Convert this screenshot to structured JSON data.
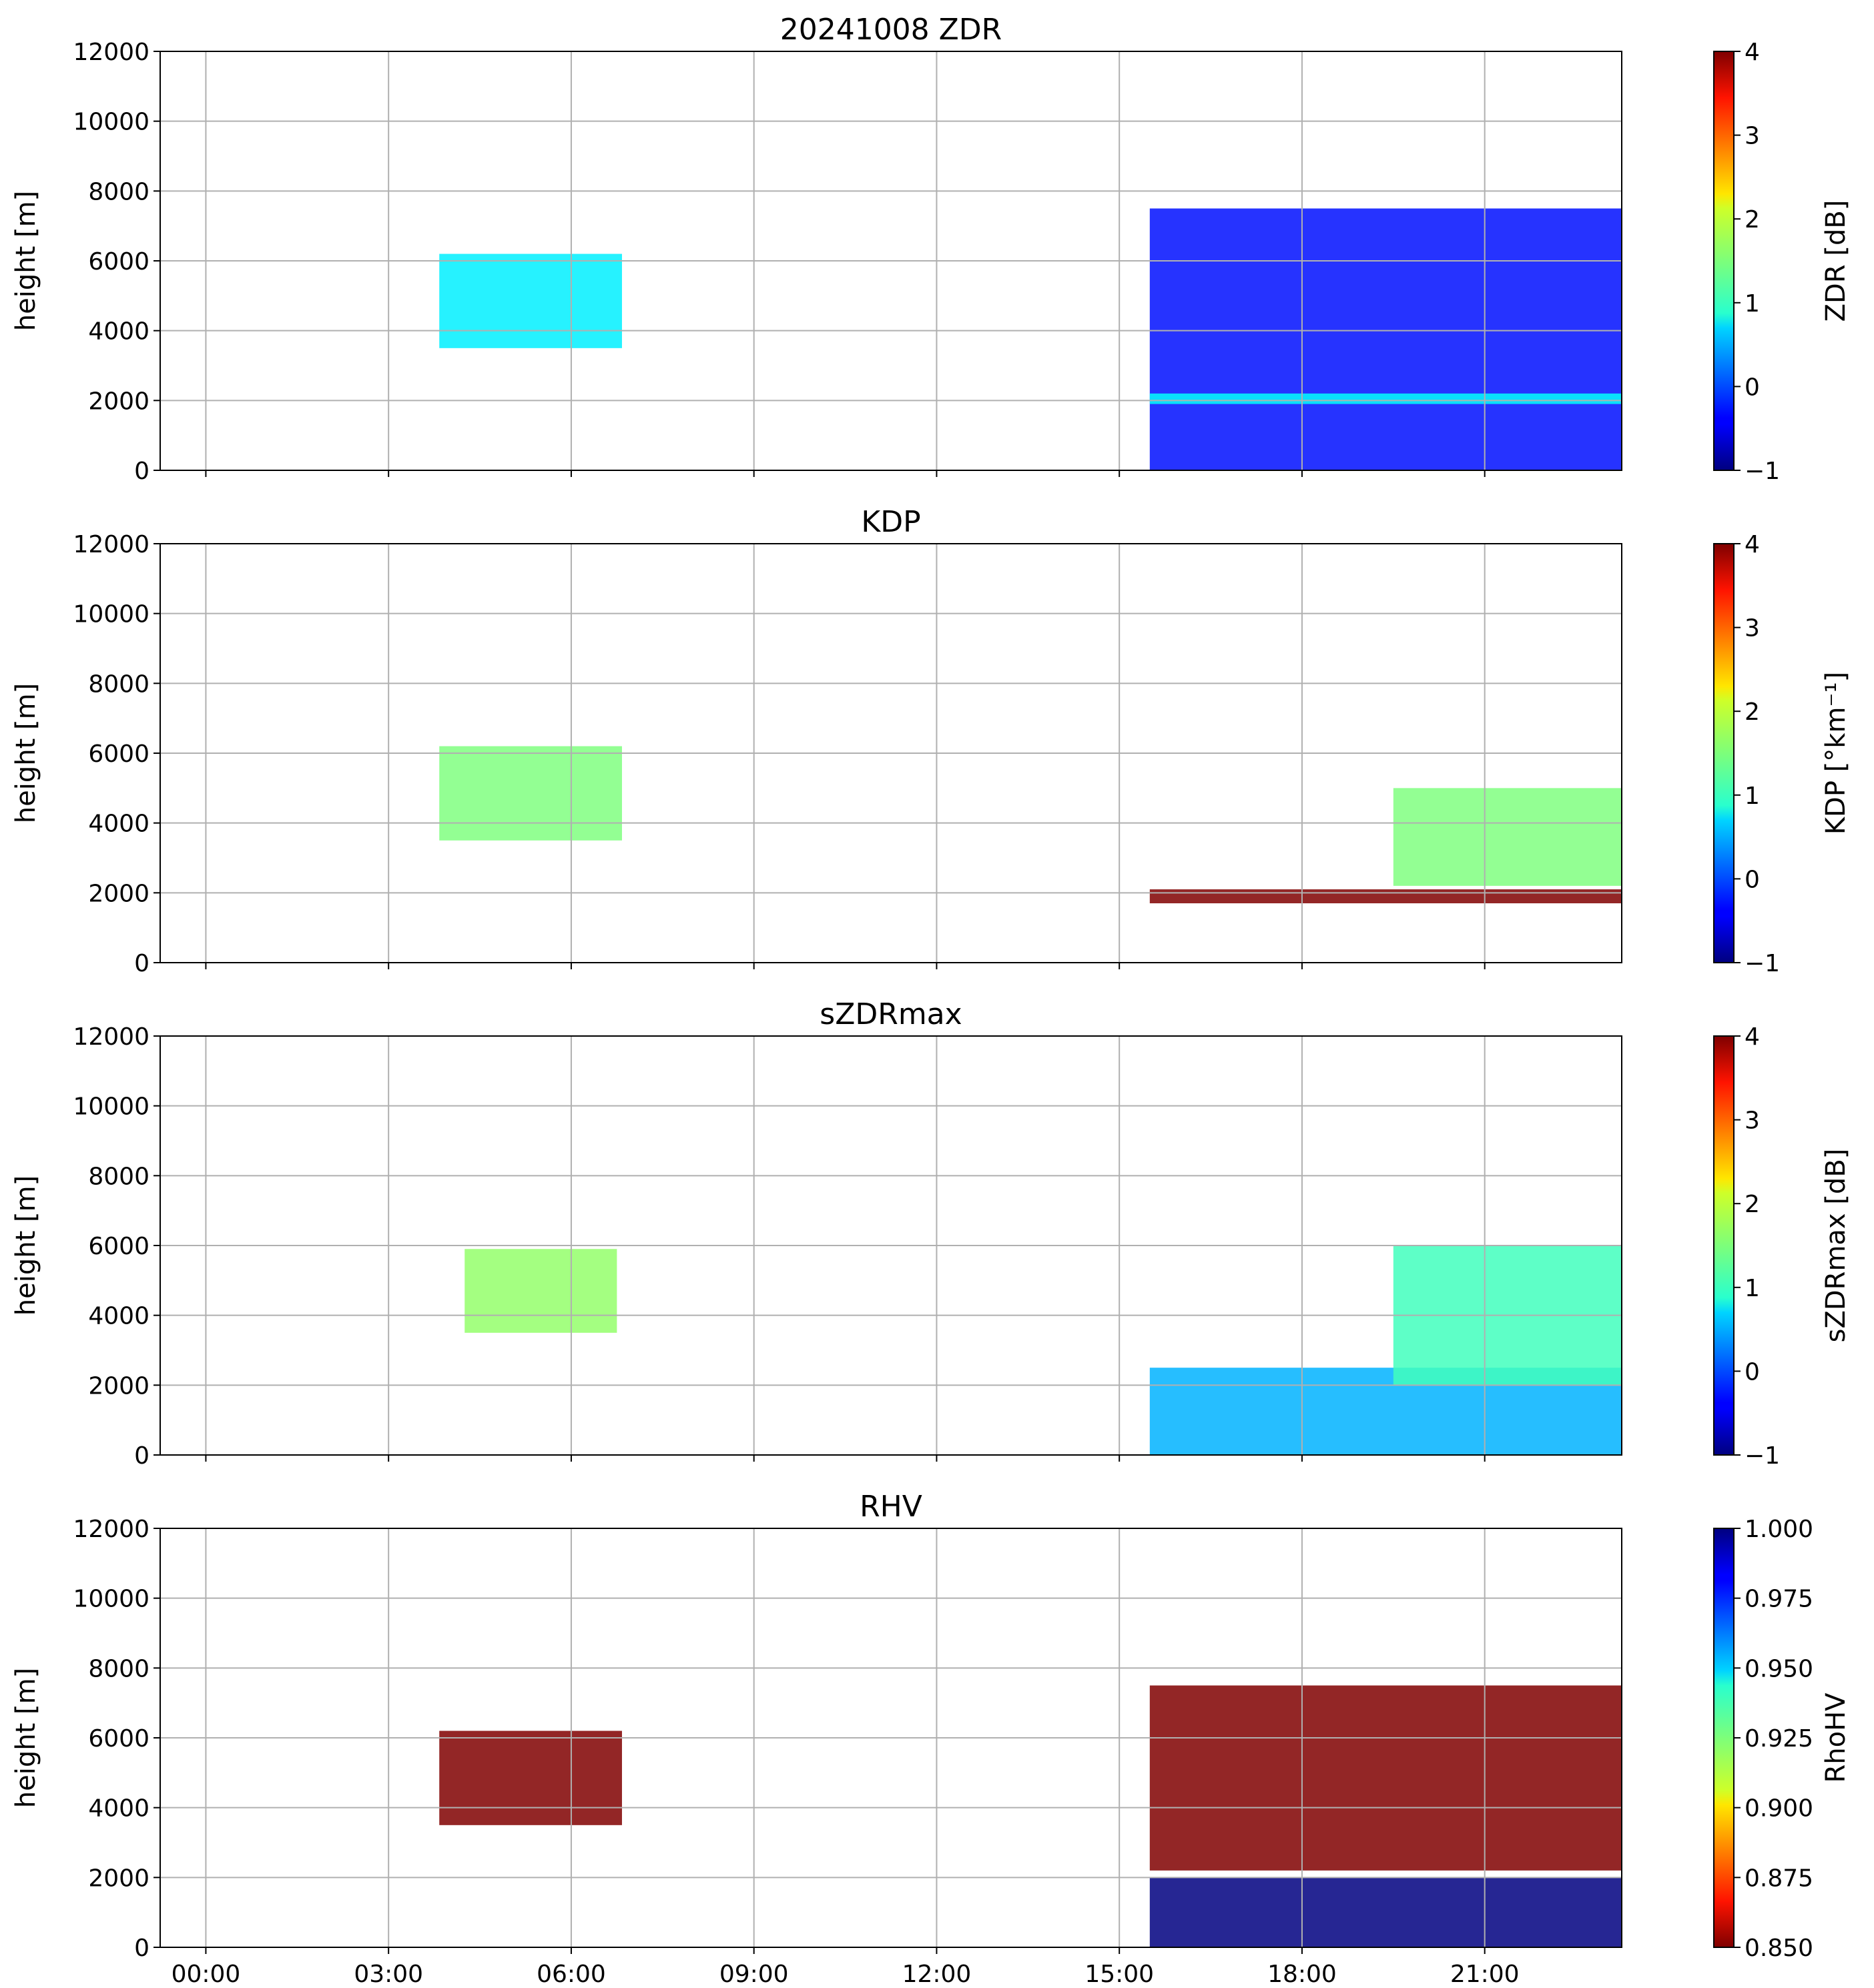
{
  "figure": {
    "title": "20241008 ZDR",
    "time_tick_labels": [
      "00:00",
      "03:00",
      "06:00",
      "09:00",
      "12:00",
      "15:00",
      "18:00",
      "21:00"
    ]
  },
  "chart_data": [
    {
      "type": "heatmap",
      "title": "20241008 ZDR",
      "xlabel": "",
      "ylabel": "height [m]",
      "colorbar_label": "ZDR [dB]",
      "colormap": "jet",
      "clim": [
        -1,
        4
      ],
      "colorbar_ticks": [
        "−1",
        "0",
        "1",
        "2",
        "3",
        "4"
      ],
      "x_range_hours": [
        -0.75,
        23.25
      ],
      "x_ticks": [
        "00:00",
        "03:00",
        "06:00",
        "09:00",
        "12:00",
        "15:00",
        "18:00",
        "21:00"
      ],
      "ylim": [
        0,
        12000
      ],
      "y_ticks": [
        0,
        2000,
        4000,
        6000,
        8000,
        10000,
        12000
      ],
      "grid": true,
      "echo_summary": [
        {
          "start": "03:50",
          "end": "06:50",
          "bottom_m": 3500,
          "top_m": 6200,
          "value": 0.8
        },
        {
          "start": "15:30",
          "end": "23:15",
          "bottom_m": 0,
          "top_m": 7500,
          "value": -0.3
        },
        {
          "start": "15:30",
          "end": "23:15",
          "bottom_m": 1900,
          "top_m": 2200,
          "value": 0.9
        }
      ]
    },
    {
      "type": "heatmap",
      "title": "KDP",
      "xlabel": "",
      "ylabel": "height [m]",
      "colorbar_label": "KDP [°km⁻¹]",
      "colormap": "jet",
      "clim": [
        -1,
        4
      ],
      "colorbar_ticks": [
        "−1",
        "0",
        "1",
        "2",
        "3",
        "4"
      ],
      "x_range_hours": [
        -0.75,
        23.25
      ],
      "x_ticks": [
        "00:00",
        "03:00",
        "06:00",
        "09:00",
        "12:00",
        "15:00",
        "18:00",
        "21:00"
      ],
      "ylim": [
        0,
        12000
      ],
      "y_ticks": [
        0,
        2000,
        4000,
        6000,
        8000,
        10000,
        12000
      ],
      "grid": true,
      "echo_summary": [
        {
          "start": "03:50",
          "end": "06:50",
          "bottom_m": 3500,
          "top_m": 6200,
          "value": 1.5
        },
        {
          "start": "15:30",
          "end": "23:15",
          "bottom_m": 1700,
          "top_m": 2100,
          "value": 4.0
        },
        {
          "start": "19:30",
          "end": "23:15",
          "bottom_m": 2200,
          "top_m": 5000,
          "value": 1.5
        }
      ]
    },
    {
      "type": "heatmap",
      "title": "sZDRmax",
      "xlabel": "",
      "ylabel": "height [m]",
      "colorbar_label": "sZDRmax [dB]",
      "colormap": "jet",
      "clim": [
        -1,
        4
      ],
      "colorbar_ticks": [
        "−1",
        "0",
        "1",
        "2",
        "3",
        "4"
      ],
      "x_range_hours": [
        -0.75,
        23.25
      ],
      "x_ticks": [
        "00:00",
        "03:00",
        "06:00",
        "09:00",
        "12:00",
        "15:00",
        "18:00",
        "21:00"
      ],
      "ylim": [
        0,
        12000
      ],
      "y_ticks": [
        0,
        2000,
        4000,
        6000,
        8000,
        10000,
        12000
      ],
      "grid": true,
      "echo_summary": [
        {
          "start": "04:15",
          "end": "06:45",
          "bottom_m": 3500,
          "top_m": 5900,
          "value": 1.6
        },
        {
          "start": "15:30",
          "end": "23:15",
          "bottom_m": 0,
          "top_m": 2500,
          "value": 0.5
        },
        {
          "start": "19:30",
          "end": "23:15",
          "bottom_m": 2000,
          "top_m": 6000,
          "value": 1.2
        }
      ]
    },
    {
      "type": "heatmap",
      "title": "RHV",
      "xlabel": "",
      "ylabel": "height [m]",
      "colorbar_label": "RhoHV",
      "colormap": "jet_r",
      "clim": [
        0.85,
        1.0
      ],
      "colorbar_ticks": [
        "0.850",
        "0.875",
        "0.900",
        "0.925",
        "0.950",
        "0.975",
        "1.000"
      ],
      "x_range_hours": [
        -0.75,
        23.25
      ],
      "x_ticks": [
        "00:00",
        "03:00",
        "06:00",
        "09:00",
        "12:00",
        "15:00",
        "18:00",
        "21:00"
      ],
      "ylim": [
        0,
        12000
      ],
      "y_ticks": [
        0,
        2000,
        4000,
        6000,
        8000,
        10000,
        12000
      ],
      "grid": true,
      "echo_summary": [
        {
          "start": "03:50",
          "end": "06:50",
          "bottom_m": 3500,
          "top_m": 6200,
          "value": 0.85
        },
        {
          "start": "15:30",
          "end": "23:15",
          "bottom_m": 0,
          "top_m": 2000,
          "value": 1.0
        },
        {
          "start": "15:30",
          "end": "23:15",
          "bottom_m": 2200,
          "top_m": 7500,
          "value": 0.85
        }
      ]
    }
  ]
}
